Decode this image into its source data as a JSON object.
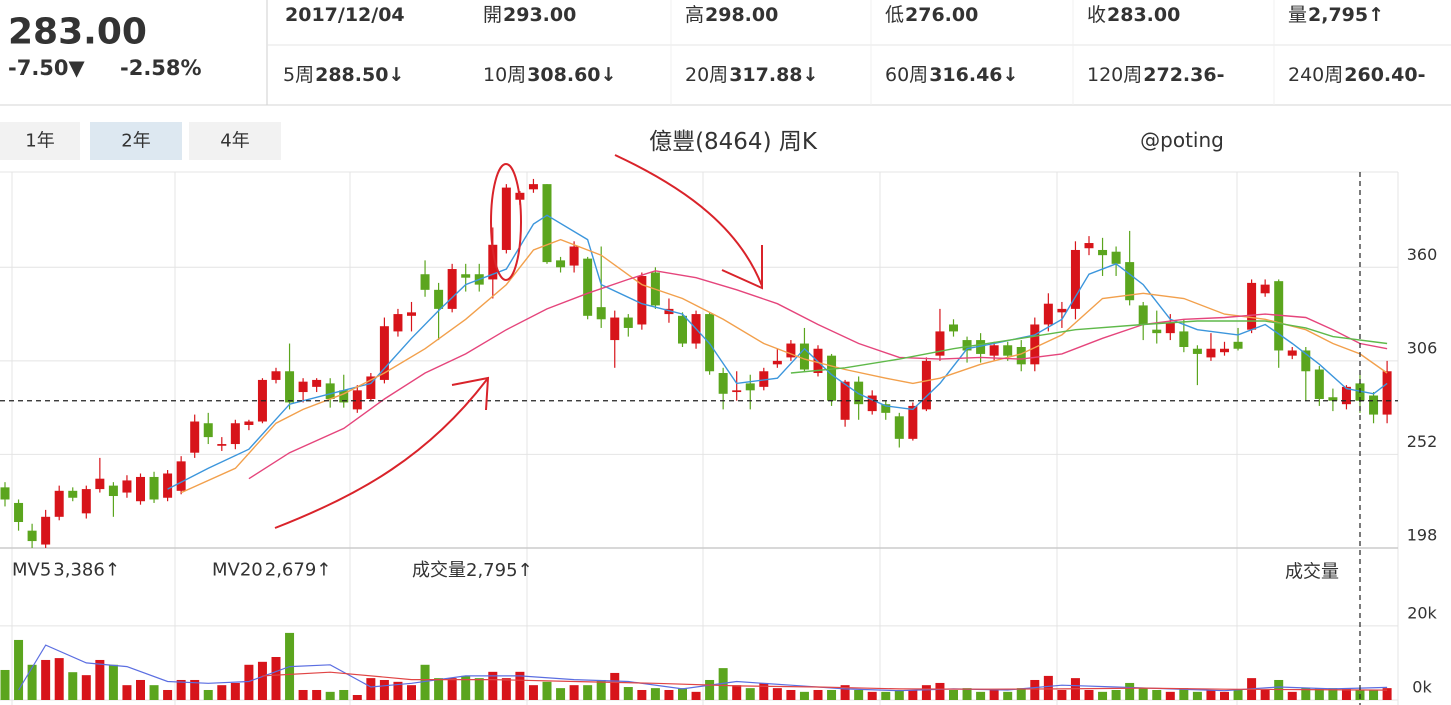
{
  "quote": {
    "price": "283.00",
    "change": "-7.50▼",
    "pct": "-2.58%",
    "color": "#2e9a1e"
  },
  "info": {
    "date": "2017/12/04",
    "items": [
      {
        "label": "開",
        "value": "293.00"
      },
      {
        "label": "高",
        "value": "298.00"
      },
      {
        "label": "低",
        "value": "276.00"
      },
      {
        "label": "收",
        "value": "283.00"
      },
      {
        "label": "量",
        "value": "2,795↑"
      }
    ]
  },
  "ma_labels": [
    {
      "label": "5周",
      "value": "288.50↓",
      "color": "#3c96dc"
    },
    {
      "label": "10周",
      "value": "308.60↓",
      "color": "#f2a04c"
    },
    {
      "label": "20周",
      "value": "317.88↓",
      "color": "#e5457c"
    },
    {
      "label": "60周",
      "value": "316.46↓",
      "color": "#5fb94a"
    },
    {
      "label": "120周",
      "value": "272.36-",
      "color": "#9a5ccc"
    },
    {
      "label": "240周",
      "value": "260.40-",
      "color": "#f0561e"
    }
  ],
  "ranges": {
    "options": [
      "1年",
      "2年",
      "4年"
    ],
    "selected": 1
  },
  "chart_data": {
    "type": "candlestick",
    "title": "億豐(8464) 周K",
    "watermark": "@poting",
    "ylim": [
      198,
      415
    ],
    "yticks": [
      198,
      252,
      306,
      360
    ],
    "grid": true,
    "up_color": "#d7141a",
    "down_color": "#5ba51e",
    "crosshair_index": 100,
    "open": [
      233,
      224,
      208,
      200,
      216,
      231,
      218,
      232,
      234,
      230,
      225,
      239,
      227,
      231,
      253,
      270,
      257,
      258,
      269,
      271,
      295,
      300,
      288,
      291,
      293,
      289,
      278,
      284,
      295,
      323,
      332,
      356,
      347,
      336,
      356,
      356,
      353,
      370,
      399,
      405,
      408,
      364,
      361,
      365,
      337,
      318,
      331,
      327,
      357,
      333,
      332,
      316,
      333,
      299,
      288,
      293,
      291,
      304,
      308,
      316,
      299,
      309,
      272,
      294,
      277,
      281,
      274,
      261,
      278,
      309,
      327,
      318,
      318,
      309,
      315,
      314,
      304,
      327,
      334,
      336,
      371,
      370,
      369,
      363,
      338,
      324,
      322,
      323,
      313,
      308,
      311,
      317,
      324,
      345,
      352,
      309,
      312,
      301,
      285,
      281,
      293,
      286,
      275
    ],
    "high": [
      236,
      226,
      212,
      220,
      234,
      233,
      234,
      250,
      236,
      240,
      241,
      242,
      243,
      251,
      275,
      276,
      262,
      272,
      272,
      296,
      302,
      316,
      296,
      296,
      296,
      298,
      292,
      299,
      331,
      336,
      340,
      364,
      351,
      362,
      362,
      362,
      383,
      408,
      404,
      411,
      408,
      366,
      375,
      366,
      372,
      335,
      333,
      357,
      360,
      342,
      334,
      335,
      334,
      302,
      300,
      298,
      302,
      313,
      318,
      325,
      315,
      310,
      295,
      297,
      289,
      283,
      276,
      282,
      308,
      336,
      330,
      320,
      322,
      317,
      317,
      318,
      331,
      345,
      340,
      375,
      378,
      377,
      372,
      381,
      340,
      335,
      333,
      330,
      315,
      322,
      317,
      325,
      353,
      353,
      353,
      314,
      314,
      303,
      290,
      292,
      298,
      288,
      306
    ],
    "low": [
      222,
      208,
      198,
      198,
      214,
      225,
      215,
      230,
      216,
      227,
      223,
      224,
      225,
      229,
      250,
      258,
      254,
      255,
      266,
      270,
      293,
      278,
      282,
      288,
      279,
      279,
      276,
      283,
      293,
      320,
      323,
      343,
      318,
      334,
      346,
      346,
      342,
      368,
      396,
      403,
      362,
      357,
      357,
      330,
      325,
      302,
      320,
      324,
      336,
      328,
      314,
      313,
      298,
      278,
      283,
      278,
      289,
      302,
      306,
      300,
      297,
      280,
      268,
      272,
      275,
      272,
      256,
      260,
      277,
      306,
      320,
      305,
      305,
      306,
      306,
      300,
      300,
      323,
      325,
      330,
      367,
      355,
      355,
      338,
      318,
      316,
      318,
      311,
      292,
      306,
      309,
      312,
      322,
      343,
      302,
      307,
      283,
      280,
      277,
      278,
      276,
      270,
      270
    ],
    "close": [
      226,
      213,
      202,
      216,
      231,
      227,
      232,
      238,
      228,
      237,
      239,
      226,
      241,
      248,
      271,
      262,
      258,
      270,
      271,
      295,
      300,
      282,
      294,
      295,
      284,
      282,
      289,
      297,
      326,
      333,
      334,
      347,
      336,
      359,
      354,
      350,
      373,
      406,
      403,
      408,
      363,
      360,
      372,
      332,
      330,
      331,
      325,
      355,
      338,
      336,
      316,
      333,
      300,
      287,
      289,
      289,
      300,
      306,
      316,
      301,
      313,
      283,
      294,
      281,
      286,
      276,
      261,
      280,
      306,
      323,
      323,
      312,
      310,
      315,
      309,
      304,
      327,
      339,
      336,
      370,
      374,
      367,
      362,
      341,
      327,
      322,
      328,
      314,
      310,
      313,
      313,
      313,
      351,
      350,
      312,
      312,
      300,
      284,
      283,
      291,
      283,
      275,
      300
    ],
    "ma_lines": [
      {
        "color": "#3c96dc",
        "x": [
          12,
          15,
          18,
          21,
          24,
          27,
          30,
          32,
          34,
          37,
          39,
          40,
          43,
          44,
          47,
          50,
          52,
          54,
          57,
          59,
          61,
          63,
          65,
          67,
          69,
          71,
          73,
          76,
          78,
          80,
          82,
          84,
          86,
          88,
          91,
          93,
          95,
          97,
          99,
          101,
          102
        ],
        "values": [
          232,
          244,
          255,
          281,
          287,
          293,
          319,
          335,
          350,
          359,
          385,
          390,
          376,
          350,
          339,
          333,
          316,
          293,
          296,
          313,
          298,
          287,
          280,
          278,
          293,
          313,
          316,
          321,
          330,
          356,
          362,
          350,
          330,
          324,
          321,
          327,
          316,
          304,
          290,
          287,
          293
        ]
      },
      {
        "color": "#f2a04c",
        "x": [
          13,
          17,
          20,
          22,
          25,
          28,
          31,
          34,
          37,
          39,
          41,
          44,
          47,
          50,
          53,
          56,
          59,
          62,
          65,
          67,
          69,
          72,
          75,
          78,
          81,
          84,
          87,
          90,
          93,
          96,
          98,
          100,
          102
        ],
        "values": [
          230,
          244,
          270,
          278,
          287,
          299,
          313,
          330,
          350,
          370,
          376,
          367,
          350,
          342,
          330,
          316,
          307,
          301,
          296,
          293,
          296,
          304,
          310,
          321,
          342,
          345,
          342,
          333,
          330,
          324,
          316,
          310,
          299
        ]
      },
      {
        "color": "#e5457c",
        "x": [
          18,
          21,
          25,
          28,
          31,
          34,
          37,
          40,
          43,
          46,
          48,
          51,
          54,
          57,
          60,
          63,
          66,
          69,
          72,
          75,
          78,
          81,
          84,
          87,
          90,
          93,
          96,
          98,
          100,
          102
        ],
        "values": [
          238,
          253,
          267,
          284,
          299,
          310,
          324,
          336,
          345,
          353,
          358,
          354,
          347,
          339,
          327,
          316,
          308,
          307,
          308,
          307,
          310,
          319,
          327,
          330,
          331,
          333,
          331,
          324,
          316,
          313
        ]
      },
      {
        "color": "#5fb94a",
        "x": [
          58,
          62,
          66,
          70,
          75,
          79,
          84,
          88,
          93,
          96,
          98,
          102
        ],
        "values": [
          299,
          302,
          307,
          313,
          319,
          324,
          327,
          329,
          329,
          325,
          320,
          316
        ]
      }
    ],
    "volume": {
      "values": [
        8100,
        16200,
        9500,
        10800,
        11300,
        7500,
        6700,
        10800,
        9500,
        4000,
        5400,
        4000,
        2700,
        5400,
        5400,
        2700,
        4000,
        4600,
        9500,
        10300,
        11600,
        18100,
        2700,
        2700,
        2200,
        2700,
        1350,
        5900,
        5400,
        4900,
        4000,
        9500,
        5900,
        5900,
        6500,
        5900,
        7600,
        5900,
        7600,
        4000,
        4900,
        3200,
        4000,
        4000,
        5400,
        7300,
        3500,
        2700,
        3200,
        2700,
        3200,
        2200,
        5400,
        8600,
        4000,
        3200,
        4600,
        3200,
        2700,
        2200,
        2700,
        2700,
        4000,
        2700,
        2200,
        2200,
        2700,
        2700,
        4000,
        4600,
        2700,
        3200,
        2200,
        2700,
        2200,
        3200,
        5400,
        6500,
        2700,
        5900,
        2700,
        2200,
        2700,
        4600,
        3200,
        2700,
        2200,
        3200,
        2200,
        2700,
        2200,
        2700,
        5900,
        2700,
        5400,
        2200,
        3200,
        3200,
        3200,
        3200,
        2795,
        2700,
        3200
      ],
      "ylim": [
        0,
        41000
      ],
      "yticks": [
        {
          "value": 0,
          "label": "0k"
        },
        {
          "value": 20000,
          "label": "20k"
        }
      ],
      "axis_label": "成交量",
      "current_label": "成交量",
      "current_value": "2,795↑",
      "lines": [
        {
          "name": "MV5",
          "value_label": "3,386↑",
          "color": "#5b6ee1",
          "x": [
            1,
            3,
            6,
            9,
            12,
            15,
            18,
            21,
            24,
            27,
            30,
            34,
            38,
            42,
            46,
            50,
            54,
            58,
            62,
            66,
            70,
            74,
            78,
            82,
            86,
            90,
            94,
            98,
            102
          ],
          "values": [
            2700,
            14800,
            10000,
            9000,
            5000,
            4500,
            5000,
            9000,
            9500,
            3500,
            4500,
            6500,
            6500,
            5500,
            5000,
            3000,
            5000,
            4000,
            3000,
            2500,
            3000,
            2700,
            4000,
            3500,
            3000,
            2500,
            3500,
            3000,
            3386
          ]
        },
        {
          "name": "MV20",
          "value_label": "2,679↑",
          "color": "#e04545",
          "x": [
            19,
            24,
            30,
            36,
            42,
            48,
            54,
            60,
            66,
            72,
            78,
            84,
            90,
            96,
            102
          ],
          "values": [
            6500,
            7500,
            5500,
            5500,
            5000,
            4500,
            3800,
            3500,
            3000,
            2900,
            3000,
            3200,
            2900,
            2800,
            2679
          ]
        }
      ]
    }
  }
}
